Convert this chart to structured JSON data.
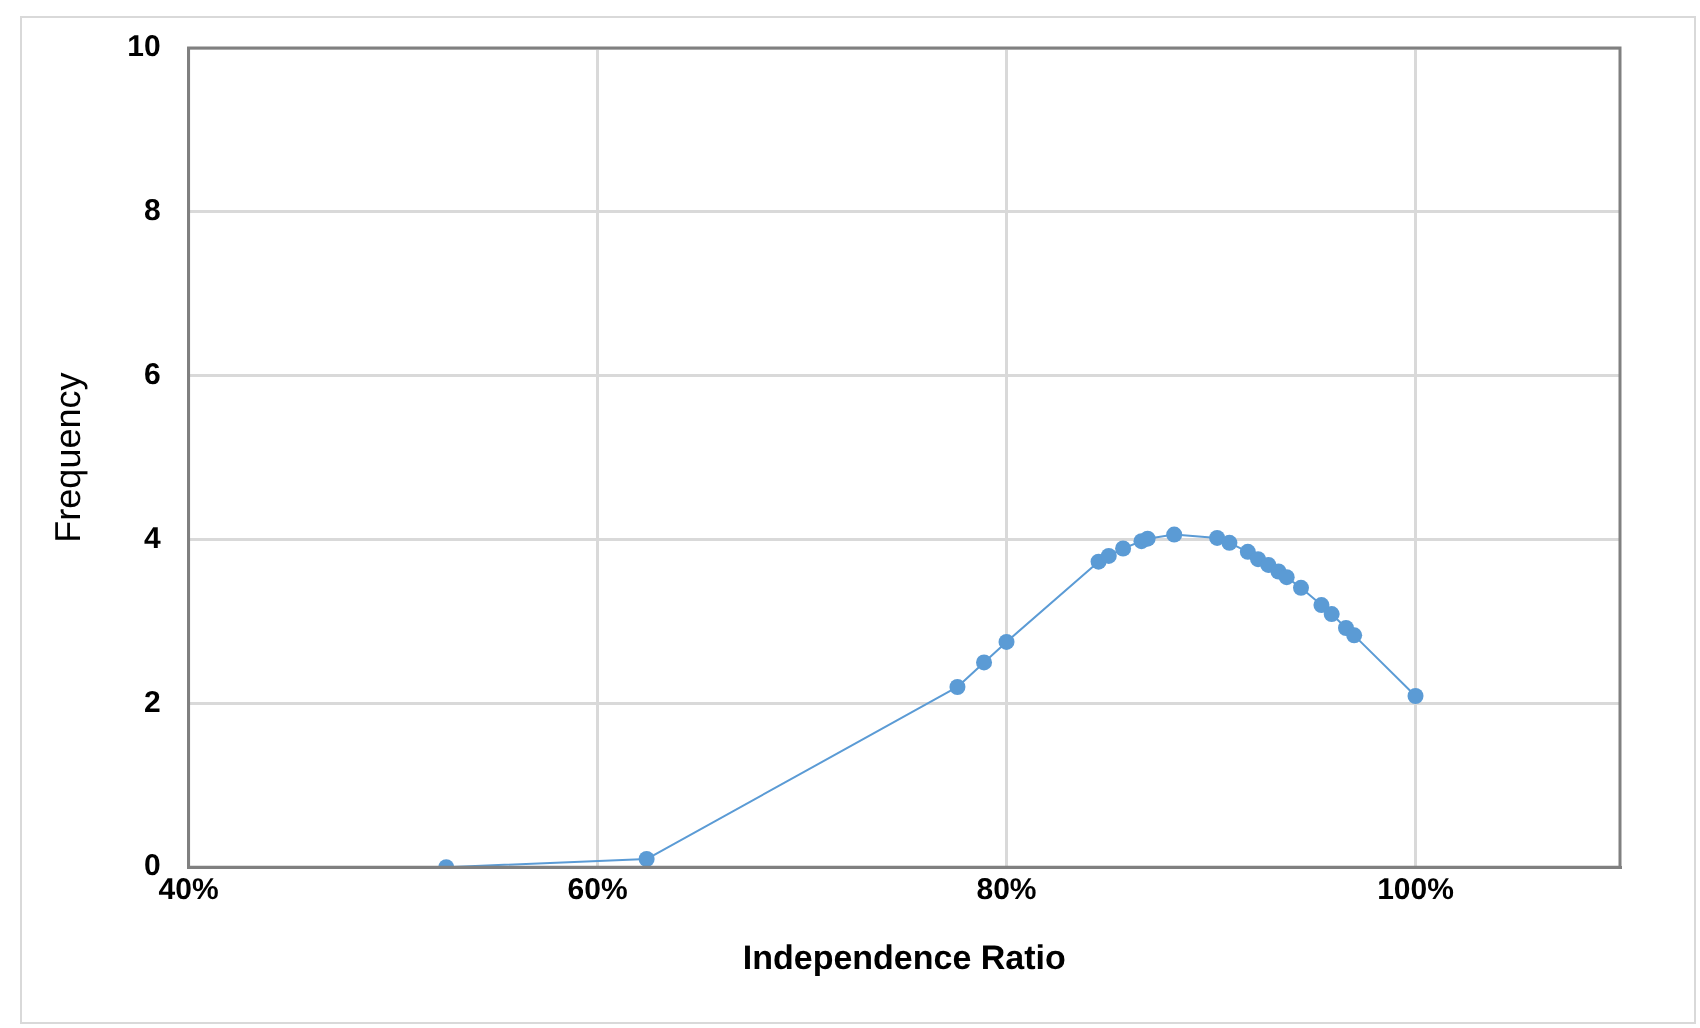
{
  "chart_data": {
    "type": "line",
    "xlabel": "Independence Ratio",
    "ylabel": "Frequency",
    "x": [
      52.6,
      62.4,
      77.6,
      78.9,
      80.0,
      84.5,
      85.0,
      85.7,
      86.6,
      86.9,
      88.2,
      90.3,
      90.9,
      91.8,
      92.3,
      92.8,
      93.3,
      93.7,
      94.4,
      95.4,
      95.9,
      96.6,
      97.0,
      100.0
    ],
    "series": [
      {
        "color": "#5b9bd5",
        "values": [
          0,
          0.1,
          2.2,
          2.5,
          2.75,
          3.73,
          3.8,
          3.89,
          3.98,
          4.01,
          4.06,
          4.02,
          3.96,
          3.85,
          3.76,
          3.69,
          3.61,
          3.54,
          3.41,
          3.2,
          3.09,
          2.92,
          2.83,
          2.09
        ]
      }
    ],
    "xlim": [
      40,
      110
    ],
    "xticks": [
      {
        "value": 40,
        "label": "40%"
      },
      {
        "value": 60,
        "label": "60%"
      },
      {
        "value": 80,
        "label": "80%"
      },
      {
        "value": 100,
        "label": "100%"
      }
    ],
    "ylim": [
      0,
      10
    ],
    "yticks": [
      0,
      2,
      4,
      6,
      8,
      10
    ],
    "grid": true,
    "legend": false,
    "marker": "circle",
    "line_style": "solid"
  }
}
